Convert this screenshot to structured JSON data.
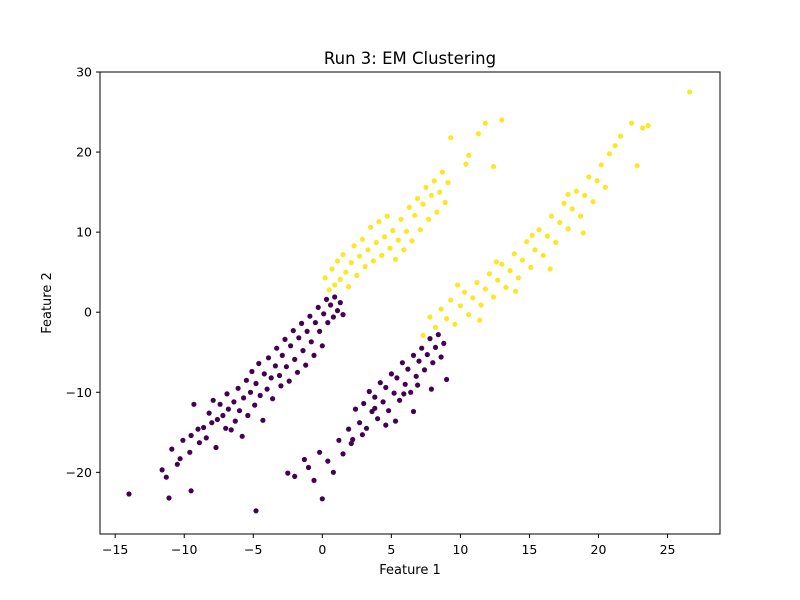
{
  "chart_data": {
    "type": "scatter",
    "title": "Run 3: EM Clustering",
    "xlabel": "Feature 1",
    "ylabel": "Feature 2",
    "xlim": [
      -16.1,
      28.8
    ],
    "ylim": [
      -27.7,
      30.0
    ],
    "x_ticks": [
      -15,
      -10,
      -5,
      0,
      5,
      10,
      15,
      20,
      25
    ],
    "y_ticks": [
      -20,
      -10,
      0,
      10,
      20,
      30
    ],
    "x_tick_labels": [
      "−15",
      "−10",
      "−5",
      "0",
      "5",
      "10",
      "15",
      "20",
      "25"
    ],
    "y_tick_labels": [
      "−20",
      "−10",
      "0",
      "10",
      "20",
      "30"
    ],
    "grid": false,
    "legend": "none",
    "colors": {
      "cluster_0": "#440154",
      "cluster_1": "#fde725"
    },
    "series": [
      {
        "color": "#440154",
        "points": [
          [
            -14.0,
            -22.7
          ],
          [
            -11.6,
            -19.7
          ],
          [
            -11.3,
            -20.6
          ],
          [
            -11.1,
            -23.2
          ],
          [
            -10.9,
            -17.1
          ],
          [
            -10.5,
            -19.0
          ],
          [
            -10.3,
            -18.3
          ],
          [
            -10.1,
            -16.0
          ],
          [
            -9.6,
            -17.5
          ],
          [
            -9.5,
            -15.4
          ],
          [
            -9.5,
            -22.3
          ],
          [
            -9.0,
            -14.6
          ],
          [
            -9.3,
            -11.5
          ],
          [
            -8.9,
            -16.3
          ],
          [
            -8.6,
            -14.4
          ],
          [
            -8.4,
            -15.7
          ],
          [
            -8.2,
            -12.6
          ],
          [
            -8.0,
            -13.8
          ],
          [
            -7.9,
            -11.0
          ],
          [
            -7.7,
            -16.9
          ],
          [
            -7.6,
            -13.4
          ],
          [
            -7.4,
            -11.5
          ],
          [
            -7.2,
            -12.9
          ],
          [
            -7.0,
            -14.5
          ],
          [
            -6.9,
            -10.2
          ],
          [
            -6.8,
            -12.1
          ],
          [
            -6.6,
            -14.7
          ],
          [
            -6.4,
            -11.2
          ],
          [
            -6.3,
            -13.6
          ],
          [
            -6.1,
            -9.5
          ],
          [
            -6.0,
            -12.3
          ],
          [
            -5.8,
            -15.5
          ],
          [
            -5.7,
            -10.7
          ],
          [
            -5.5,
            -8.5
          ],
          [
            -5.4,
            -12.9
          ],
          [
            -5.2,
            -10.0
          ],
          [
            -5.1,
            -7.4
          ],
          [
            -4.9,
            -11.6
          ],
          [
            -4.8,
            -8.9
          ],
          [
            -4.6,
            -6.4
          ],
          [
            -4.5,
            -10.4
          ],
          [
            -4.3,
            -13.5
          ],
          [
            -4.2,
            -7.7
          ],
          [
            -4.0,
            -9.6
          ],
          [
            -3.9,
            -5.7
          ],
          [
            -3.7,
            -8.2
          ],
          [
            -3.6,
            -10.8
          ],
          [
            -3.4,
            -6.7
          ],
          [
            -3.3,
            -4.5
          ],
          [
            -3.1,
            -7.9
          ],
          [
            -3.0,
            -9.2
          ],
          [
            -2.9,
            -5.4
          ],
          [
            -2.7,
            -3.4
          ],
          [
            -2.6,
            -6.8
          ],
          [
            -2.4,
            -8.6
          ],
          [
            -2.3,
            -4.2
          ],
          [
            -2.1,
            -2.3
          ],
          [
            -2.0,
            -5.9
          ],
          [
            -1.8,
            -7.5
          ],
          [
            -1.7,
            -3.2
          ],
          [
            -1.5,
            -1.4
          ],
          [
            -1.4,
            -4.8
          ],
          [
            -1.2,
            -6.6
          ],
          [
            -1.1,
            -2.4
          ],
          [
            -0.9,
            -0.5
          ],
          [
            -0.8,
            -3.7
          ],
          [
            -0.6,
            -5.4
          ],
          [
            -0.5,
            -1.3
          ],
          [
            -0.3,
            0.6
          ],
          [
            -0.2,
            -2.4
          ],
          [
            0.0,
            -4.2
          ],
          [
            0.1,
            -0.2
          ],
          [
            0.3,
            1.6
          ],
          [
            0.4,
            -1.3
          ],
          [
            0.6,
            0.9
          ],
          [
            0.8,
            -0.6
          ],
          [
            0.9,
            1.9
          ],
          [
            1.1,
            0.2
          ],
          [
            1.3,
            1.2
          ],
          [
            1.5,
            -0.3
          ],
          [
            -4.8,
            -24.8
          ],
          [
            -2.5,
            -20.1
          ],
          [
            -2.0,
            -20.5
          ],
          [
            -1.3,
            -18.4
          ],
          [
            -1.0,
            -19.4
          ],
          [
            -0.6,
            -21.0
          ],
          [
            -0.2,
            -17.5
          ],
          [
            0.0,
            -23.3
          ],
          [
            0.4,
            -18.6
          ],
          [
            0.8,
            -20.0
          ],
          [
            1.2,
            -16.0
          ],
          [
            1.5,
            -17.7
          ],
          [
            1.9,
            -14.6
          ],
          [
            2.2,
            -15.9
          ],
          [
            2.4,
            -12.1
          ],
          [
            2.7,
            -13.8
          ],
          [
            3.0,
            -11.4
          ],
          [
            3.2,
            -14.5
          ],
          [
            3.4,
            -9.9
          ],
          [
            3.6,
            -12.4
          ],
          [
            3.8,
            -10.6
          ],
          [
            4.0,
            -13.3
          ],
          [
            4.2,
            -8.8
          ],
          [
            4.4,
            -11.2
          ],
          [
            4.6,
            -9.4
          ],
          [
            4.8,
            -12.3
          ],
          [
            5.0,
            -7.7
          ],
          [
            5.2,
            -10.1
          ],
          [
            5.4,
            -8.2
          ],
          [
            5.6,
            -11.0
          ],
          [
            5.8,
            -6.3
          ],
          [
            6.0,
            -9.0
          ],
          [
            6.2,
            -7.1
          ],
          [
            6.4,
            -10.0
          ],
          [
            6.6,
            -5.4
          ],
          [
            6.8,
            -8.0
          ],
          [
            7.0,
            -6.1
          ],
          [
            7.2,
            -4.5
          ],
          [
            7.4,
            -7.2
          ],
          [
            7.6,
            -5.3
          ],
          [
            7.8,
            -3.3
          ],
          [
            8.0,
            -6.3
          ],
          [
            8.2,
            -4.4
          ],
          [
            8.4,
            -2.8
          ],
          [
            8.6,
            -5.6
          ],
          [
            8.8,
            -3.9
          ],
          [
            9.0,
            -8.4
          ],
          [
            7.9,
            -9.6
          ],
          [
            6.6,
            -12.4
          ],
          [
            5.3,
            -13.6
          ],
          [
            4.6,
            -14.1
          ],
          [
            2.1,
            -16.4
          ],
          [
            2.9,
            -15.3
          ],
          [
            3.8,
            -12.0
          ],
          [
            5.9,
            -10.2
          ],
          [
            6.9,
            -9.1
          ]
        ]
      },
      {
        "color": "#fde725",
        "points": [
          [
            0.2,
            4.3
          ],
          [
            0.5,
            2.8
          ],
          [
            0.7,
            5.4
          ],
          [
            0.9,
            3.4
          ],
          [
            1.1,
            6.4
          ],
          [
            1.3,
            4.1
          ],
          [
            1.5,
            7.2
          ],
          [
            1.7,
            5.0
          ],
          [
            1.9,
            3.2
          ],
          [
            2.1,
            6.2
          ],
          [
            2.3,
            8.3
          ],
          [
            2.5,
            4.6
          ],
          [
            2.7,
            7.0
          ],
          [
            2.9,
            9.1
          ],
          [
            3.1,
            5.7
          ],
          [
            3.3,
            7.8
          ],
          [
            3.5,
            10.6
          ],
          [
            3.7,
            6.4
          ],
          [
            3.9,
            8.7
          ],
          [
            4.1,
            11.3
          ],
          [
            4.3,
            7.1
          ],
          [
            4.5,
            9.4
          ],
          [
            4.7,
            12.0
          ],
          [
            4.9,
            8.0
          ],
          [
            5.1,
            10.2
          ],
          [
            5.3,
            6.6
          ],
          [
            5.5,
            9.0
          ],
          [
            5.7,
            11.6
          ],
          [
            5.9,
            7.8
          ],
          [
            6.1,
            10.1
          ],
          [
            6.3,
            13.1
          ],
          [
            6.5,
            8.9
          ],
          [
            6.7,
            12.1
          ],
          [
            6.9,
            14.2
          ],
          [
            7.1,
            10.3
          ],
          [
            7.3,
            13.5
          ],
          [
            7.5,
            15.6
          ],
          [
            7.7,
            11.6
          ],
          [
            7.9,
            14.6
          ],
          [
            8.1,
            16.4
          ],
          [
            8.3,
            12.5
          ],
          [
            8.5,
            15.0
          ],
          [
            8.7,
            17.5
          ],
          [
            8.9,
            13.7
          ],
          [
            9.1,
            16.2
          ],
          [
            9.3,
            21.8
          ],
          [
            10.4,
            18.5
          ],
          [
            10.6,
            19.6
          ],
          [
            11.3,
            22.3
          ],
          [
            11.8,
            23.6
          ],
          [
            12.4,
            18.2
          ],
          [
            13.0,
            24.0
          ],
          [
            7.3,
            -2.9
          ],
          [
            7.8,
            -0.6
          ],
          [
            8.2,
            -1.9
          ],
          [
            8.6,
            0.4
          ],
          [
            9.0,
            -0.8
          ],
          [
            9.3,
            1.5
          ],
          [
            9.6,
            -1.5
          ],
          [
            10.0,
            0.8
          ],
          [
            10.3,
            2.5
          ],
          [
            10.6,
            -0.3
          ],
          [
            10.9,
            1.8
          ],
          [
            11.2,
            3.7
          ],
          [
            11.5,
            0.9
          ],
          [
            11.8,
            2.9
          ],
          [
            12.1,
            4.8
          ],
          [
            12.4,
            1.9
          ],
          [
            12.7,
            4.0
          ],
          [
            13.0,
            6.0
          ],
          [
            13.3,
            3.1
          ],
          [
            13.6,
            5.2
          ],
          [
            13.9,
            7.3
          ],
          [
            14.2,
            4.3
          ],
          [
            14.5,
            6.5
          ],
          [
            14.8,
            8.8
          ],
          [
            15.1,
            5.6
          ],
          [
            15.4,
            7.8
          ],
          [
            15.7,
            10.3
          ],
          [
            16.0,
            7.1
          ],
          [
            16.3,
            9.5
          ],
          [
            16.6,
            12.0
          ],
          [
            16.9,
            8.7
          ],
          [
            17.2,
            11.2
          ],
          [
            17.5,
            13.6
          ],
          [
            17.8,
            10.4
          ],
          [
            18.1,
            12.9
          ],
          [
            18.4,
            15.1
          ],
          [
            18.7,
            12.0
          ],
          [
            19.0,
            14.6
          ],
          [
            19.3,
            16.9
          ],
          [
            19.6,
            13.8
          ],
          [
            19.9,
            16.4
          ],
          [
            20.2,
            18.4
          ],
          [
            20.5,
            15.6
          ],
          [
            20.8,
            19.8
          ],
          [
            21.2,
            20.8
          ],
          [
            21.6,
            22.0
          ],
          [
            22.4,
            23.6
          ],
          [
            22.8,
            18.3
          ],
          [
            23.2,
            23.0
          ],
          [
            23.6,
            23.3
          ],
          [
            26.6,
            27.5
          ],
          [
            9.8,
            3.4
          ],
          [
            11.4,
            -1.0
          ],
          [
            12.6,
            6.3
          ],
          [
            14.0,
            2.6
          ],
          [
            15.2,
            9.6
          ],
          [
            16.5,
            5.4
          ],
          [
            17.8,
            14.7
          ],
          [
            18.9,
            9.9
          ]
        ]
      }
    ]
  }
}
